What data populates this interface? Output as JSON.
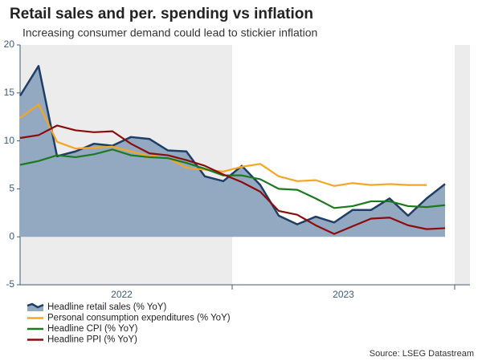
{
  "chart_data": {
    "type": "line",
    "title": "Retail sales and per. spending vs inflation",
    "subtitle": "Increasing consumer demand could lead to stickier inflation",
    "source": "Source: LSEG Datastream",
    "categories": [
      null,
      null,
      null,
      null,
      null,
      null,
      "2022",
      null,
      null,
      null,
      null,
      null,
      null,
      null,
      null,
      null,
      null,
      null,
      "2023",
      null,
      null,
      null,
      null,
      null
    ],
    "ylim": [
      -5,
      20
    ],
    "yticks": [
      -5,
      0,
      5,
      10,
      15,
      20
    ],
    "series": [
      {
        "name": "Headline retail sales (% YoY)",
        "color": "#1f3e66",
        "fill": "#93a9c2",
        "area": true,
        "values": [
          14.7,
          17.8,
          8.4,
          8.9,
          9.7,
          9.5,
          10.4,
          10.2,
          9.0,
          8.9,
          6.3,
          5.8,
          7.4,
          5.4,
          2.2,
          1.3,
          2.1,
          1.5,
          2.8,
          2.8,
          4.0,
          2.2,
          4.0,
          5.5
        ]
      },
      {
        "name": "Personal consumption expenditures (% YoY)",
        "color": "#f5a524",
        "values": [
          12.4,
          13.8,
          9.9,
          9.2,
          9.3,
          9.4,
          8.9,
          8.4,
          8.2,
          7.2,
          7.0,
          6.8,
          7.3,
          7.6,
          6.3,
          5.8,
          5.9,
          5.3,
          5.6,
          5.4,
          5.5,
          5.4,
          5.4,
          null
        ]
      },
      {
        "name": "Headline CPI (% YoY)",
        "color": "#1b7a1b",
        "values": [
          7.5,
          7.9,
          8.5,
          8.3,
          8.6,
          9.1,
          8.5,
          8.3,
          8.2,
          7.7,
          7.1,
          6.4,
          6.4,
          6.0,
          5.0,
          4.9,
          4.0,
          3.0,
          3.2,
          3.7,
          3.7,
          3.2,
          3.1,
          3.3
        ]
      },
      {
        "name": "Headline PPI (% YoY)",
        "color": "#8b0c0c",
        "values": [
          10.3,
          10.6,
          11.6,
          11.1,
          10.9,
          11.0,
          9.7,
          8.7,
          8.5,
          8.0,
          7.4,
          6.5,
          5.7,
          4.7,
          2.7,
          2.3,
          1.2,
          0.3,
          1.1,
          1.9,
          2.0,
          1.2,
          0.8,
          0.9
        ]
      }
    ]
  }
}
